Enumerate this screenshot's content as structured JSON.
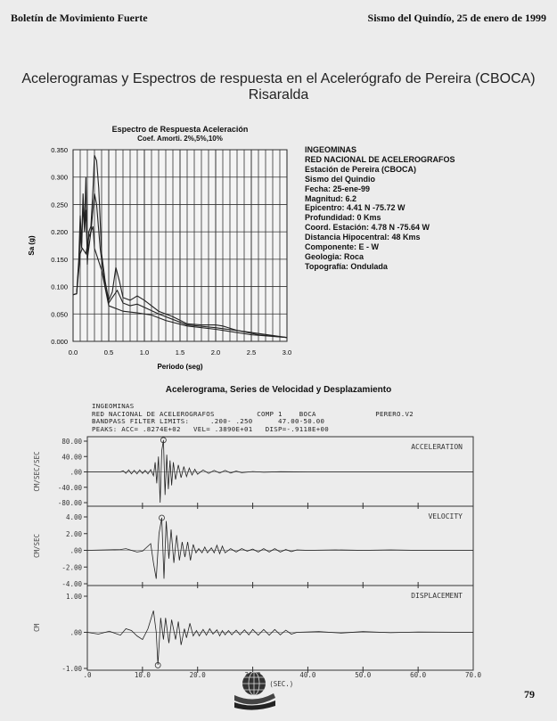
{
  "header": {
    "left": "Boletín de Movimiento Fuerte",
    "right": "Sismo del Quindío, 25 de enero de 1999"
  },
  "title": {
    "line1": "Acelerogramas y Espectros de respuesta en el Acelerógrafo de Pereira (CBOCA)",
    "line2": "Risaralda"
  },
  "station_info": [
    "INGEOMINAS",
    "RED NACIONAL DE ACELEROGRAFOS",
    "Estación de Pereira (CBOCA)",
    "Sismo del Quindio",
    "Fecha: 25-ene-99",
    "Magnitud: 6.2",
    "Epicentro: 4.41 N  -75.72 W",
    "Profundidad: 0 Kms",
    "Coord. Estación: 4.78 N  -75.64 W",
    "Distancia Hipocentral: 48 Kms",
    "Componente: E - W",
    "Geologia: Roca",
    "Topografía: Ondulada"
  ],
  "accelerogram": {
    "title": "Acelerograma, Series de Velocidad y Desplazamiento",
    "header_lines": [
      "INGEOMINAS",
      "RED NACIONAL DE ACELEROGRAFOS          COMP 1    BOCA              PERERO.V2",
      "BANDPASS FILTER LIMITS:     .200- .250      47.00-50.00",
      "PEAKS: ACC= .8274E+02   VEL= .3890E+01   DISP=-.9118E+00"
    ]
  },
  "footer": {
    "page_number": "79"
  },
  "chart_data": [
    {
      "type": "line",
      "title": "Espectro de Respuesta Aceleración",
      "subtitle": "Coef. Amorti. 2%,5%,10%",
      "xlabel": "Periodo (seg)",
      "ylabel": "Sa (g)",
      "xlim": [
        0,
        3.0
      ],
      "ylim": [
        0,
        0.35
      ],
      "xticks": [
        "0.0",
        "0.5",
        "1.0",
        "1.5",
        "2.0",
        "2.5",
        "3.0"
      ],
      "yticks": [
        "0.000",
        "0.050",
        "0.100",
        "0.150",
        "0.200",
        "0.250",
        "0.300",
        "0.350"
      ],
      "grid": true,
      "series": [
        {
          "name": "2%",
          "points": [
            [
              0,
              0.085
            ],
            [
              0.05,
              0.087
            ],
            [
              0.08,
              0.15
            ],
            [
              0.1,
              0.23
            ],
            [
              0.12,
              0.18
            ],
            [
              0.14,
              0.27
            ],
            [
              0.16,
              0.21
            ],
            [
              0.18,
              0.3
            ],
            [
              0.2,
              0.14
            ],
            [
              0.22,
              0.2
            ],
            [
              0.25,
              0.21
            ],
            [
              0.28,
              0.28
            ],
            [
              0.3,
              0.34
            ],
            [
              0.33,
              0.33
            ],
            [
              0.36,
              0.28
            ],
            [
              0.4,
              0.16
            ],
            [
              0.45,
              0.11
            ],
            [
              0.5,
              0.075
            ],
            [
              0.55,
              0.09
            ],
            [
              0.6,
              0.135
            ],
            [
              0.65,
              0.11
            ],
            [
              0.7,
              0.08
            ],
            [
              0.8,
              0.075
            ],
            [
              0.9,
              0.083
            ],
            [
              1.0,
              0.075
            ],
            [
              1.2,
              0.055
            ],
            [
              1.4,
              0.045
            ],
            [
              1.6,
              0.032
            ],
            [
              1.8,
              0.03
            ],
            [
              2.0,
              0.03
            ],
            [
              2.1,
              0.028
            ],
            [
              2.3,
              0.02
            ],
            [
              2.6,
              0.012
            ],
            [
              3.0,
              0.007
            ]
          ]
        },
        {
          "name": "5%",
          "points": [
            [
              0,
              0.085
            ],
            [
              0.05,
              0.087
            ],
            [
              0.08,
              0.14
            ],
            [
              0.1,
              0.2
            ],
            [
              0.12,
              0.17
            ],
            [
              0.14,
              0.25
            ],
            [
              0.16,
              0.2
            ],
            [
              0.18,
              0.24
            ],
            [
              0.2,
              0.15
            ],
            [
              0.25,
              0.2
            ],
            [
              0.3,
              0.27
            ],
            [
              0.33,
              0.25
            ],
            [
              0.38,
              0.17
            ],
            [
              0.45,
              0.1
            ],
            [
              0.5,
              0.07
            ],
            [
              0.55,
              0.08
            ],
            [
              0.62,
              0.093
            ],
            [
              0.7,
              0.07
            ],
            [
              0.8,
              0.065
            ],
            [
              0.9,
              0.068
            ],
            [
              1.0,
              0.062
            ],
            [
              1.2,
              0.05
            ],
            [
              1.4,
              0.04
            ],
            [
              1.6,
              0.03
            ],
            [
              2.0,
              0.025
            ],
            [
              2.4,
              0.018
            ],
            [
              3.0,
              0.007
            ]
          ]
        },
        {
          "name": "10%",
          "points": [
            [
              0,
              0.085
            ],
            [
              0.05,
              0.087
            ],
            [
              0.08,
              0.13
            ],
            [
              0.1,
              0.16
            ],
            [
              0.13,
              0.17
            ],
            [
              0.18,
              0.16
            ],
            [
              0.22,
              0.19
            ],
            [
              0.28,
              0.21
            ],
            [
              0.3,
              0.17
            ],
            [
              0.4,
              0.13
            ],
            [
              0.5,
              0.065
            ],
            [
              0.6,
              0.06
            ],
            [
              0.7,
              0.055
            ],
            [
              0.9,
              0.052
            ],
            [
              1.1,
              0.048
            ],
            [
              1.3,
              0.038
            ],
            [
              1.6,
              0.028
            ],
            [
              2.0,
              0.022
            ],
            [
              2.5,
              0.012
            ],
            [
              3.0,
              0.007
            ]
          ]
        }
      ]
    },
    {
      "type": "line",
      "panel": "ACCELERATION",
      "ylabel": "CM/SEC/SEC",
      "ylim": [
        -80,
        80
      ],
      "yticks": [
        "80.00",
        "40.00",
        ".00",
        "-40.00",
        "-80.00"
      ],
      "xlim": [
        0,
        70
      ],
      "peak": 82.74,
      "peak_time": 13.8,
      "points": [
        [
          0,
          0
        ],
        [
          6,
          0
        ],
        [
          6.5,
          3
        ],
        [
          7,
          -4
        ],
        [
          7.5,
          5
        ],
        [
          8,
          -5
        ],
        [
          8.5,
          4
        ],
        [
          9,
          -5
        ],
        [
          9.5,
          5
        ],
        [
          10,
          -4
        ],
        [
          10.5,
          4
        ],
        [
          11,
          -5
        ],
        [
          11.5,
          6
        ],
        [
          12,
          -10
        ],
        [
          12.3,
          25
        ],
        [
          12.6,
          -30
        ],
        [
          12.9,
          40
        ],
        [
          13.2,
          -80
        ],
        [
          13.5,
          55
        ],
        [
          13.8,
          82.7
        ],
        [
          14.1,
          -60
        ],
        [
          14.4,
          45
        ],
        [
          14.7,
          -45
        ],
        [
          15,
          30
        ],
        [
          15.3,
          -35
        ],
        [
          15.6,
          25
        ],
        [
          16,
          -20
        ],
        [
          16.5,
          18
        ],
        [
          17,
          -15
        ],
        [
          17.5,
          14
        ],
        [
          18,
          -12
        ],
        [
          18.5,
          10
        ],
        [
          19,
          -8
        ],
        [
          19.5,
          7
        ],
        [
          20,
          -6
        ],
        [
          21,
          5
        ],
        [
          22,
          -4
        ],
        [
          23,
          4
        ],
        [
          24,
          -3
        ],
        [
          25,
          4
        ],
        [
          26,
          -3
        ],
        [
          27,
          2
        ],
        [
          28,
          -2
        ],
        [
          30,
          1
        ],
        [
          32,
          -1
        ],
        [
          35,
          0.5
        ],
        [
          40,
          0
        ],
        [
          70,
          0
        ]
      ]
    },
    {
      "type": "line",
      "panel": "VELOCITY",
      "ylabel": "CM/SEC",
      "ylim": [
        -4,
        4
      ],
      "yticks": [
        "4.00",
        "2.00",
        ".00",
        "-2.00",
        "-4.00"
      ],
      "xlim": [
        0,
        70
      ],
      "peak": 3.89,
      "peak_time": 13.5,
      "points": [
        [
          0,
          0
        ],
        [
          6,
          0.1
        ],
        [
          7,
          0.2
        ],
        [
          8,
          0
        ],
        [
          9,
          -0.2
        ],
        [
          10,
          -0.1
        ],
        [
          11.5,
          0.8
        ],
        [
          12,
          -1.5
        ],
        [
          12.5,
          -3.4
        ],
        [
          13,
          2
        ],
        [
          13.5,
          3.9
        ],
        [
          13.9,
          -3.4
        ],
        [
          14.3,
          3.5
        ],
        [
          14.8,
          -1
        ],
        [
          15.2,
          2.5
        ],
        [
          15.7,
          -1.5
        ],
        [
          16.2,
          1.8
        ],
        [
          16.7,
          -1.2
        ],
        [
          17.2,
          1
        ],
        [
          17.7,
          -0.8
        ],
        [
          18.2,
          1
        ],
        [
          18.7,
          -1.2
        ],
        [
          19.2,
          0.7
        ],
        [
          19.7,
          -0.3
        ],
        [
          20.2,
          0.2
        ],
        [
          20.8,
          -0.3
        ],
        [
          21.3,
          0.4
        ],
        [
          21.8,
          -0.3
        ],
        [
          22.5,
          0.3
        ],
        [
          23,
          -0.3
        ],
        [
          23.5,
          0.6
        ],
        [
          24,
          -0.4
        ],
        [
          24.5,
          0.5
        ],
        [
          25,
          -0.3
        ],
        [
          26,
          0.2
        ],
        [
          27,
          -0.2
        ],
        [
          28,
          0.2
        ],
        [
          29,
          -0.1
        ],
        [
          30,
          0.15
        ],
        [
          31,
          -0.2
        ],
        [
          32,
          0.2
        ],
        [
          33,
          -0.2
        ],
        [
          34,
          0.2
        ],
        [
          35,
          -0.2
        ],
        [
          36,
          0.1
        ],
        [
          37,
          -0.15
        ],
        [
          38,
          0.05
        ],
        [
          40,
          0
        ],
        [
          45,
          0.05
        ],
        [
          50,
          0
        ],
        [
          55,
          0.05
        ],
        [
          60,
          0
        ],
        [
          65,
          0
        ],
        [
          70,
          0
        ]
      ]
    },
    {
      "type": "line",
      "panel": "DISPLACEMENT",
      "ylabel": "CM",
      "ylim": [
        -1,
        1
      ],
      "yticks": [
        "1.00",
        ".00",
        "-1.00"
      ],
      "xlim": [
        0,
        70
      ],
      "xticks": [
        ".0",
        "10.0",
        "20.0",
        "30.0",
        "40.0",
        "50.0",
        "60.0",
        "70.0"
      ],
      "xlabel": "TIME (SEC.)",
      "peak": -0.9118,
      "peak_time": 12.8,
      "points": [
        [
          0,
          0
        ],
        [
          2,
          -0.05
        ],
        [
          4,
          0.03
        ],
        [
          6,
          -0.08
        ],
        [
          7,
          0.1
        ],
        [
          8,
          0.05
        ],
        [
          9,
          -0.1
        ],
        [
          10,
          -0.2
        ],
        [
          11,
          0.1
        ],
        [
          12,
          0.6
        ],
        [
          12.5,
          0
        ],
        [
          12.8,
          -0.9
        ],
        [
          13.3,
          0.4
        ],
        [
          13.8,
          -0.2
        ],
        [
          14.2,
          0.4
        ],
        [
          14.8,
          -0.3
        ],
        [
          15.3,
          0.35
        ],
        [
          16,
          -0.2
        ],
        [
          16.5,
          0.3
        ],
        [
          17,
          -0.35
        ],
        [
          17.6,
          0.1
        ],
        [
          18,
          -0.15
        ],
        [
          18.6,
          0.25
        ],
        [
          19.2,
          -0.1
        ],
        [
          19.8,
          0.05
        ],
        [
          20.3,
          -0.1
        ],
        [
          21,
          0.08
        ],
        [
          21.6,
          -0.08
        ],
        [
          22.2,
          0.1
        ],
        [
          22.8,
          -0.05
        ],
        [
          23.5,
          0.07
        ],
        [
          24,
          -0.1
        ],
        [
          24.5,
          0.05
        ],
        [
          25,
          -0.07
        ],
        [
          25.6,
          0.05
        ],
        [
          26.2,
          -0.07
        ],
        [
          27,
          0.06
        ],
        [
          27.7,
          -0.07
        ],
        [
          28.5,
          0.07
        ],
        [
          29.3,
          -0.07
        ],
        [
          30,
          0.08
        ],
        [
          31,
          -0.08
        ],
        [
          32,
          0.08
        ],
        [
          33,
          -0.08
        ],
        [
          34,
          0.08
        ],
        [
          35,
          -0.07
        ],
        [
          36,
          0.06
        ],
        [
          37,
          -0.05
        ],
        [
          38,
          0
        ],
        [
          42,
          0.02
        ],
        [
          46,
          -0.02
        ],
        [
          50,
          0.02
        ],
        [
          55,
          -0.01
        ],
        [
          60,
          0.01
        ],
        [
          70,
          0
        ]
      ]
    }
  ]
}
